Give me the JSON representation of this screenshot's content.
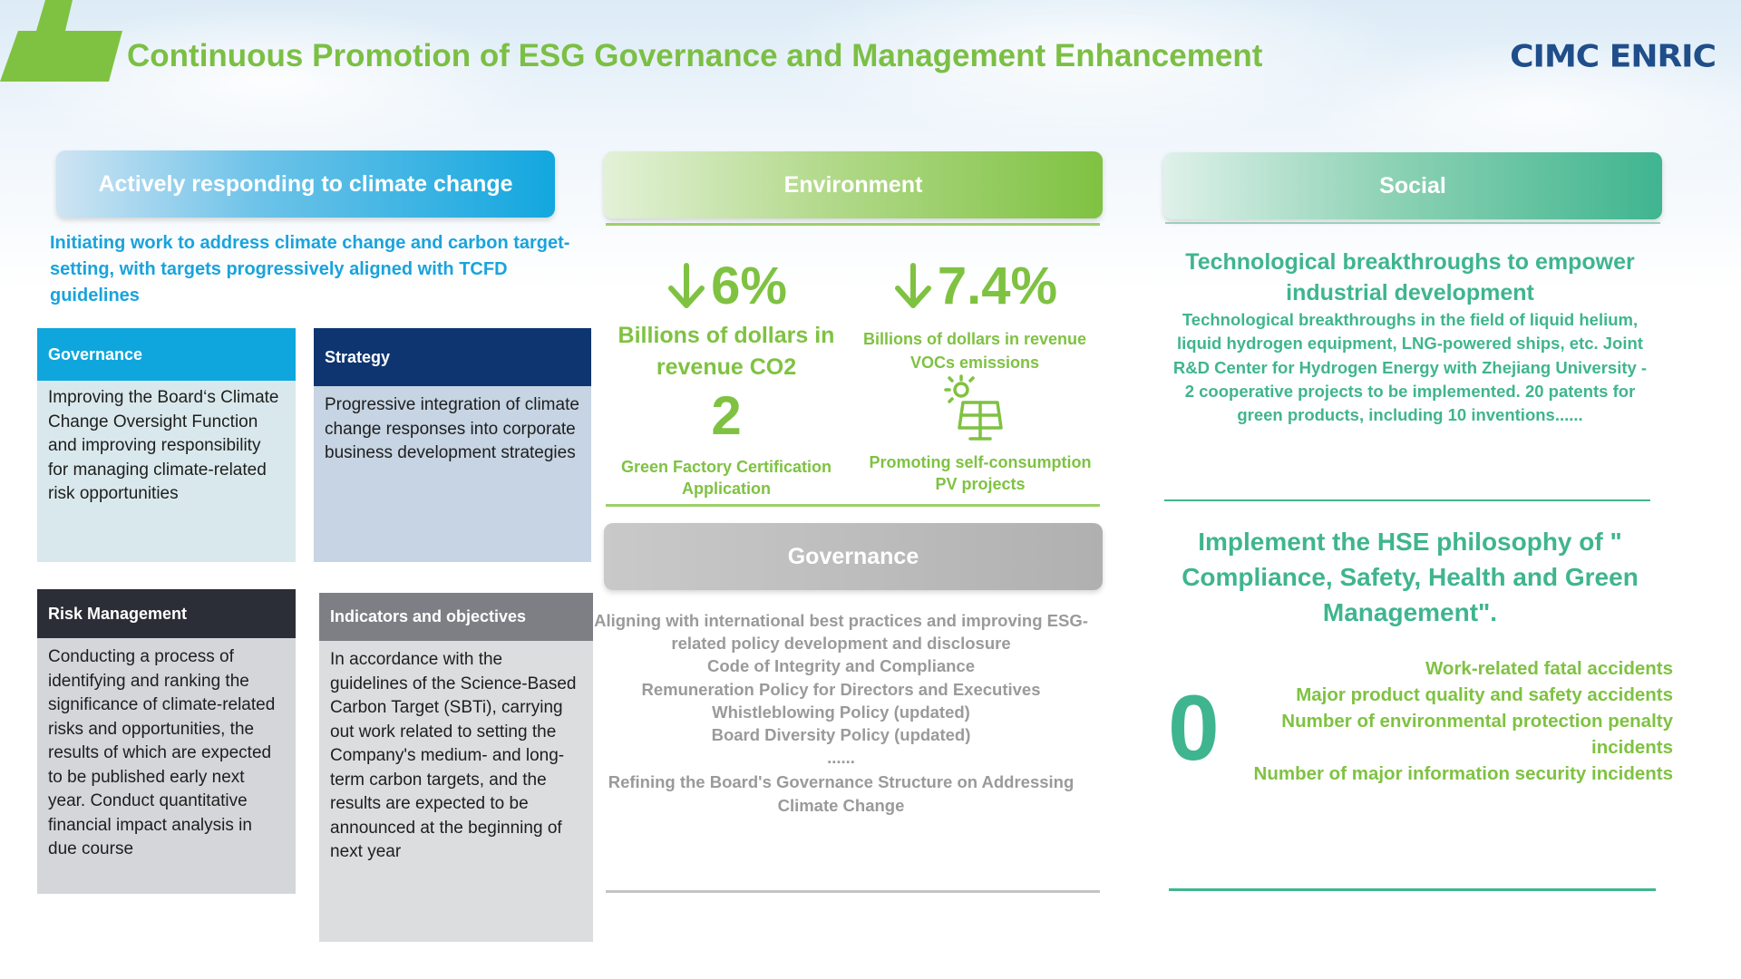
{
  "header": {
    "title": "Continuous Promotion of ESG Governance and Management Enhancement",
    "logo_text": "CIMC ENRIC"
  },
  "climate": {
    "banner": "Actively responding to climate change",
    "intro": "Initiating work to address climate change and carbon target-setting, with targets progressively aligned with TCFD guidelines",
    "tiles": {
      "governance": {
        "title": "Governance",
        "text": "Improving the Board‘s Climate Change Oversight Function and improving responsibility for managing climate-related risk opportunities"
      },
      "strategy": {
        "title": "Strategy",
        "text": "Progressive integration of climate change responses into corporate business development strategies"
      },
      "risk": {
        "title": "Risk Management",
        "text": "Conducting a process of identifying and ranking the significance of climate-related risks and opportunities, the results of which are expected to be published early next year. Conduct quantitative financial impact analysis in due course"
      },
      "indicators": {
        "title": "Indicators and objectives",
        "text": "In accordance with the guidelines of the Science-Based Carbon Target (SBTi),  carrying out work related to setting the Company's medium- and long-term carbon targets, and the results are expected to be announced at the beginning of next year"
      }
    }
  },
  "environment": {
    "banner": "Environment",
    "stats": [
      {
        "value": "6%",
        "label": "Billions of dollars in revenue CO2"
      },
      {
        "value": "7.4%",
        "label": "Billions of dollars in revenue VOCs emissions"
      },
      {
        "value": "2",
        "label": "Green Factory Certification Application"
      },
      {
        "label": "Promoting self-consumption PV projects"
      }
    ],
    "icons": {
      "down_arrow": "down-arrow-icon",
      "pv": "solar-panel-icon"
    },
    "accent_color": "#7fc242"
  },
  "governance": {
    "banner": "Governance",
    "items": [
      "Aligning with international best practices and improving ESG-related policy development and disclosure",
      "Code of Integrity and Compliance",
      "Remuneration Policy for Directors and Executives",
      "Whistleblowing Policy (updated)",
      "Board Diversity Policy (updated)",
      "......",
      "Refining the Board's Governance Structure on Addressing Climate Change"
    ]
  },
  "social": {
    "banner": "Social",
    "tech_title": "Technological breakthroughs to empower industrial development",
    "tech_text": "Technological breakthroughs in the field of liquid helium, liquid hydrogen equipment, LNG-powered ships, etc. Joint R&D Center for Hydrogen Energy with Zhejiang University - 2 cooperative projects to be implemented. 20 patents for green products, including 10 inventions......",
    "hse_title": "Implement the HSE philosophy of \" Compliance, Safety, Health and Green Management\".",
    "zero": "0",
    "incidents": [
      "Work-related fatal accidents",
      "Major product quality and safety accidents",
      "Number of environmental protection penalty incidents",
      "Number of major information security incidents"
    ],
    "accent_color": "#3fb58f"
  }
}
